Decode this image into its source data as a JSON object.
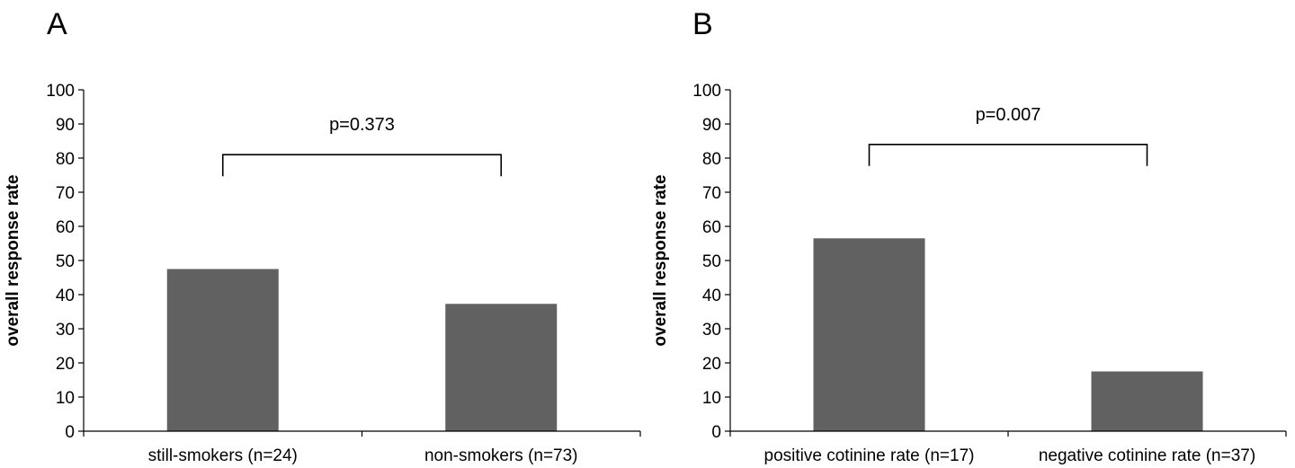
{
  "colors": {
    "bar": "#616161",
    "axis": "#000000"
  },
  "chart_data": [
    {
      "type": "bar",
      "panel": "A",
      "categories": [
        "still-smokers (n=24)",
        "non-smokers (n=73)"
      ],
      "values": [
        47.5,
        37.3
      ],
      "ylabel": "overall response rate",
      "xlabel": "",
      "ylim": [
        0,
        100
      ],
      "yticks": [
        0,
        10,
        20,
        30,
        40,
        50,
        60,
        70,
        80,
        90,
        100
      ],
      "annotation": {
        "text": "p=0.373",
        "bracket_level": 81,
        "between": [
          0,
          1
        ]
      },
      "grid": false,
      "legend": "none"
    },
    {
      "type": "bar",
      "panel": "B",
      "categories": [
        "positive cotinine rate (n=17)",
        "negative cotinine rate (n=37)"
      ],
      "values": [
        56.5,
        17.5
      ],
      "ylabel": "overall response rate",
      "xlabel": "",
      "ylim": [
        0,
        100
      ],
      "yticks": [
        0,
        10,
        20,
        30,
        40,
        50,
        60,
        70,
        80,
        90,
        100
      ],
      "annotation": {
        "text": "p=0.007",
        "bracket_level": 84,
        "between": [
          0,
          1
        ]
      },
      "grid": false,
      "legend": "none"
    }
  ]
}
